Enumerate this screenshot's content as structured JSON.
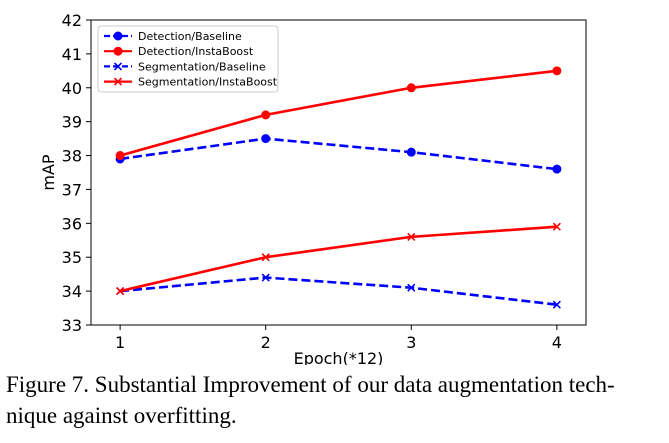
{
  "chart_data": {
    "type": "line",
    "title": "",
    "xlabel": "Epoch(*12)",
    "ylabel": "mAP",
    "x": [
      1,
      2,
      3,
      4
    ],
    "xticks": [
      "1",
      "2",
      "3",
      "4"
    ],
    "yticks": [
      "33",
      "34",
      "35",
      "36",
      "37",
      "38",
      "39",
      "40",
      "41",
      "42"
    ],
    "xlim": [
      0.8,
      4.2
    ],
    "ylim": [
      33,
      42
    ],
    "grid": false,
    "legend_position": "top-left",
    "series": [
      {
        "name": "Detection/Baseline",
        "values": [
          37.9,
          38.5,
          38.1,
          37.6
        ],
        "color": "#0000ff",
        "linestyle": "dashed",
        "marker": "circle"
      },
      {
        "name": "Detection/InstaBoost",
        "values": [
          38.0,
          39.2,
          40.0,
          40.5
        ],
        "color": "#ff0000",
        "linestyle": "solid",
        "marker": "circle"
      },
      {
        "name": "Segmentation/Baseline",
        "values": [
          34.0,
          34.4,
          34.1,
          33.6
        ],
        "color": "#0000ff",
        "linestyle": "dashed",
        "marker": "x"
      },
      {
        "name": "Segmentation/InstaBoost",
        "values": [
          34.0,
          35.0,
          35.6,
          35.9
        ],
        "color": "#ff0000",
        "linestyle": "solid",
        "marker": "x"
      }
    ]
  },
  "caption": {
    "line1": "Figure 7. Substantial Improvement of our data augmentation tech-",
    "line2": "nique against overfitting."
  }
}
